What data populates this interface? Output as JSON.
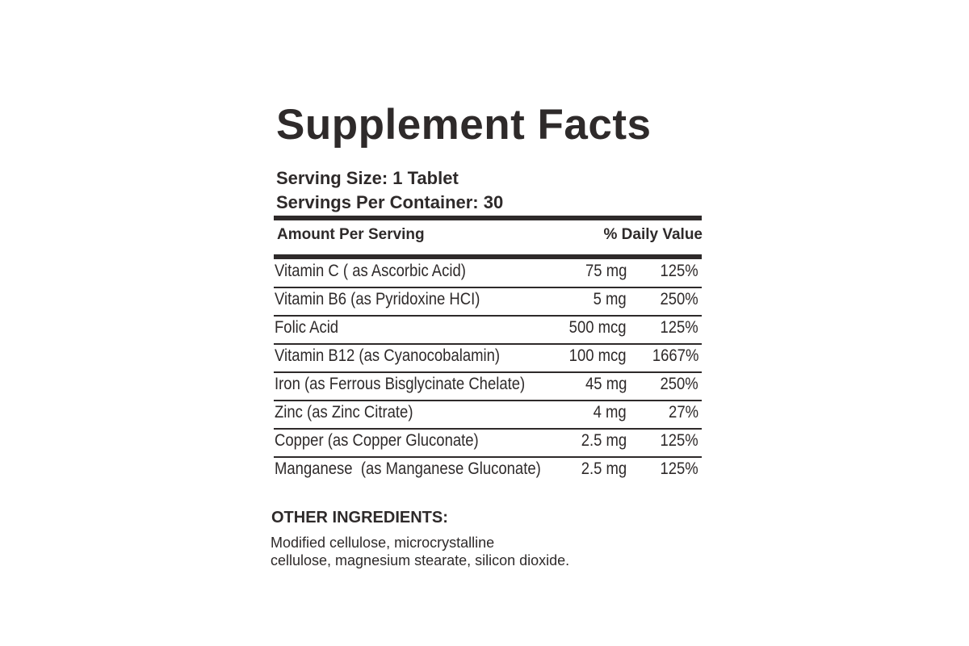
{
  "header": {
    "title": "Supplement Facts",
    "serving_size": "Serving Size: 1 Tablet",
    "servings_per_container": "Servings Per Container: 30"
  },
  "table": {
    "columns": [
      "Amount Per Serving",
      "% Daily Value"
    ],
    "rows": [
      [
        "Vitamin C ( as Ascorbic Acid)",
        "75 mg",
        "125%"
      ],
      [
        "Vitamin B6 (as Pyridoxine HCI)",
        "5 mg",
        "250%"
      ],
      [
        "Folic Acid",
        "500 mcg",
        "125%"
      ],
      [
        "Vitamin B12 (as Cyanocobalamin)",
        "100 mcg",
        "1667%"
      ],
      [
        "Iron (as Ferrous Bisglycinate Chelate)",
        "45 mg",
        "250%"
      ],
      [
        "Zinc (as Zinc Citrate)",
        "4 mg",
        "27%"
      ],
      [
        "Copper (as Copper Gluconate)",
        "2.5 mg",
        "125%"
      ],
      [
        "Manganese  (as Manganese Gluconate)",
        "2.5 mg",
        "125%"
      ]
    ]
  },
  "other_ingredients": {
    "title": "OTHER INGREDIENTS:",
    "lines": [
      "Modified cellulose, microcrystalline",
      "cellulose, magnesium stearate, silicon dioxide."
    ]
  }
}
